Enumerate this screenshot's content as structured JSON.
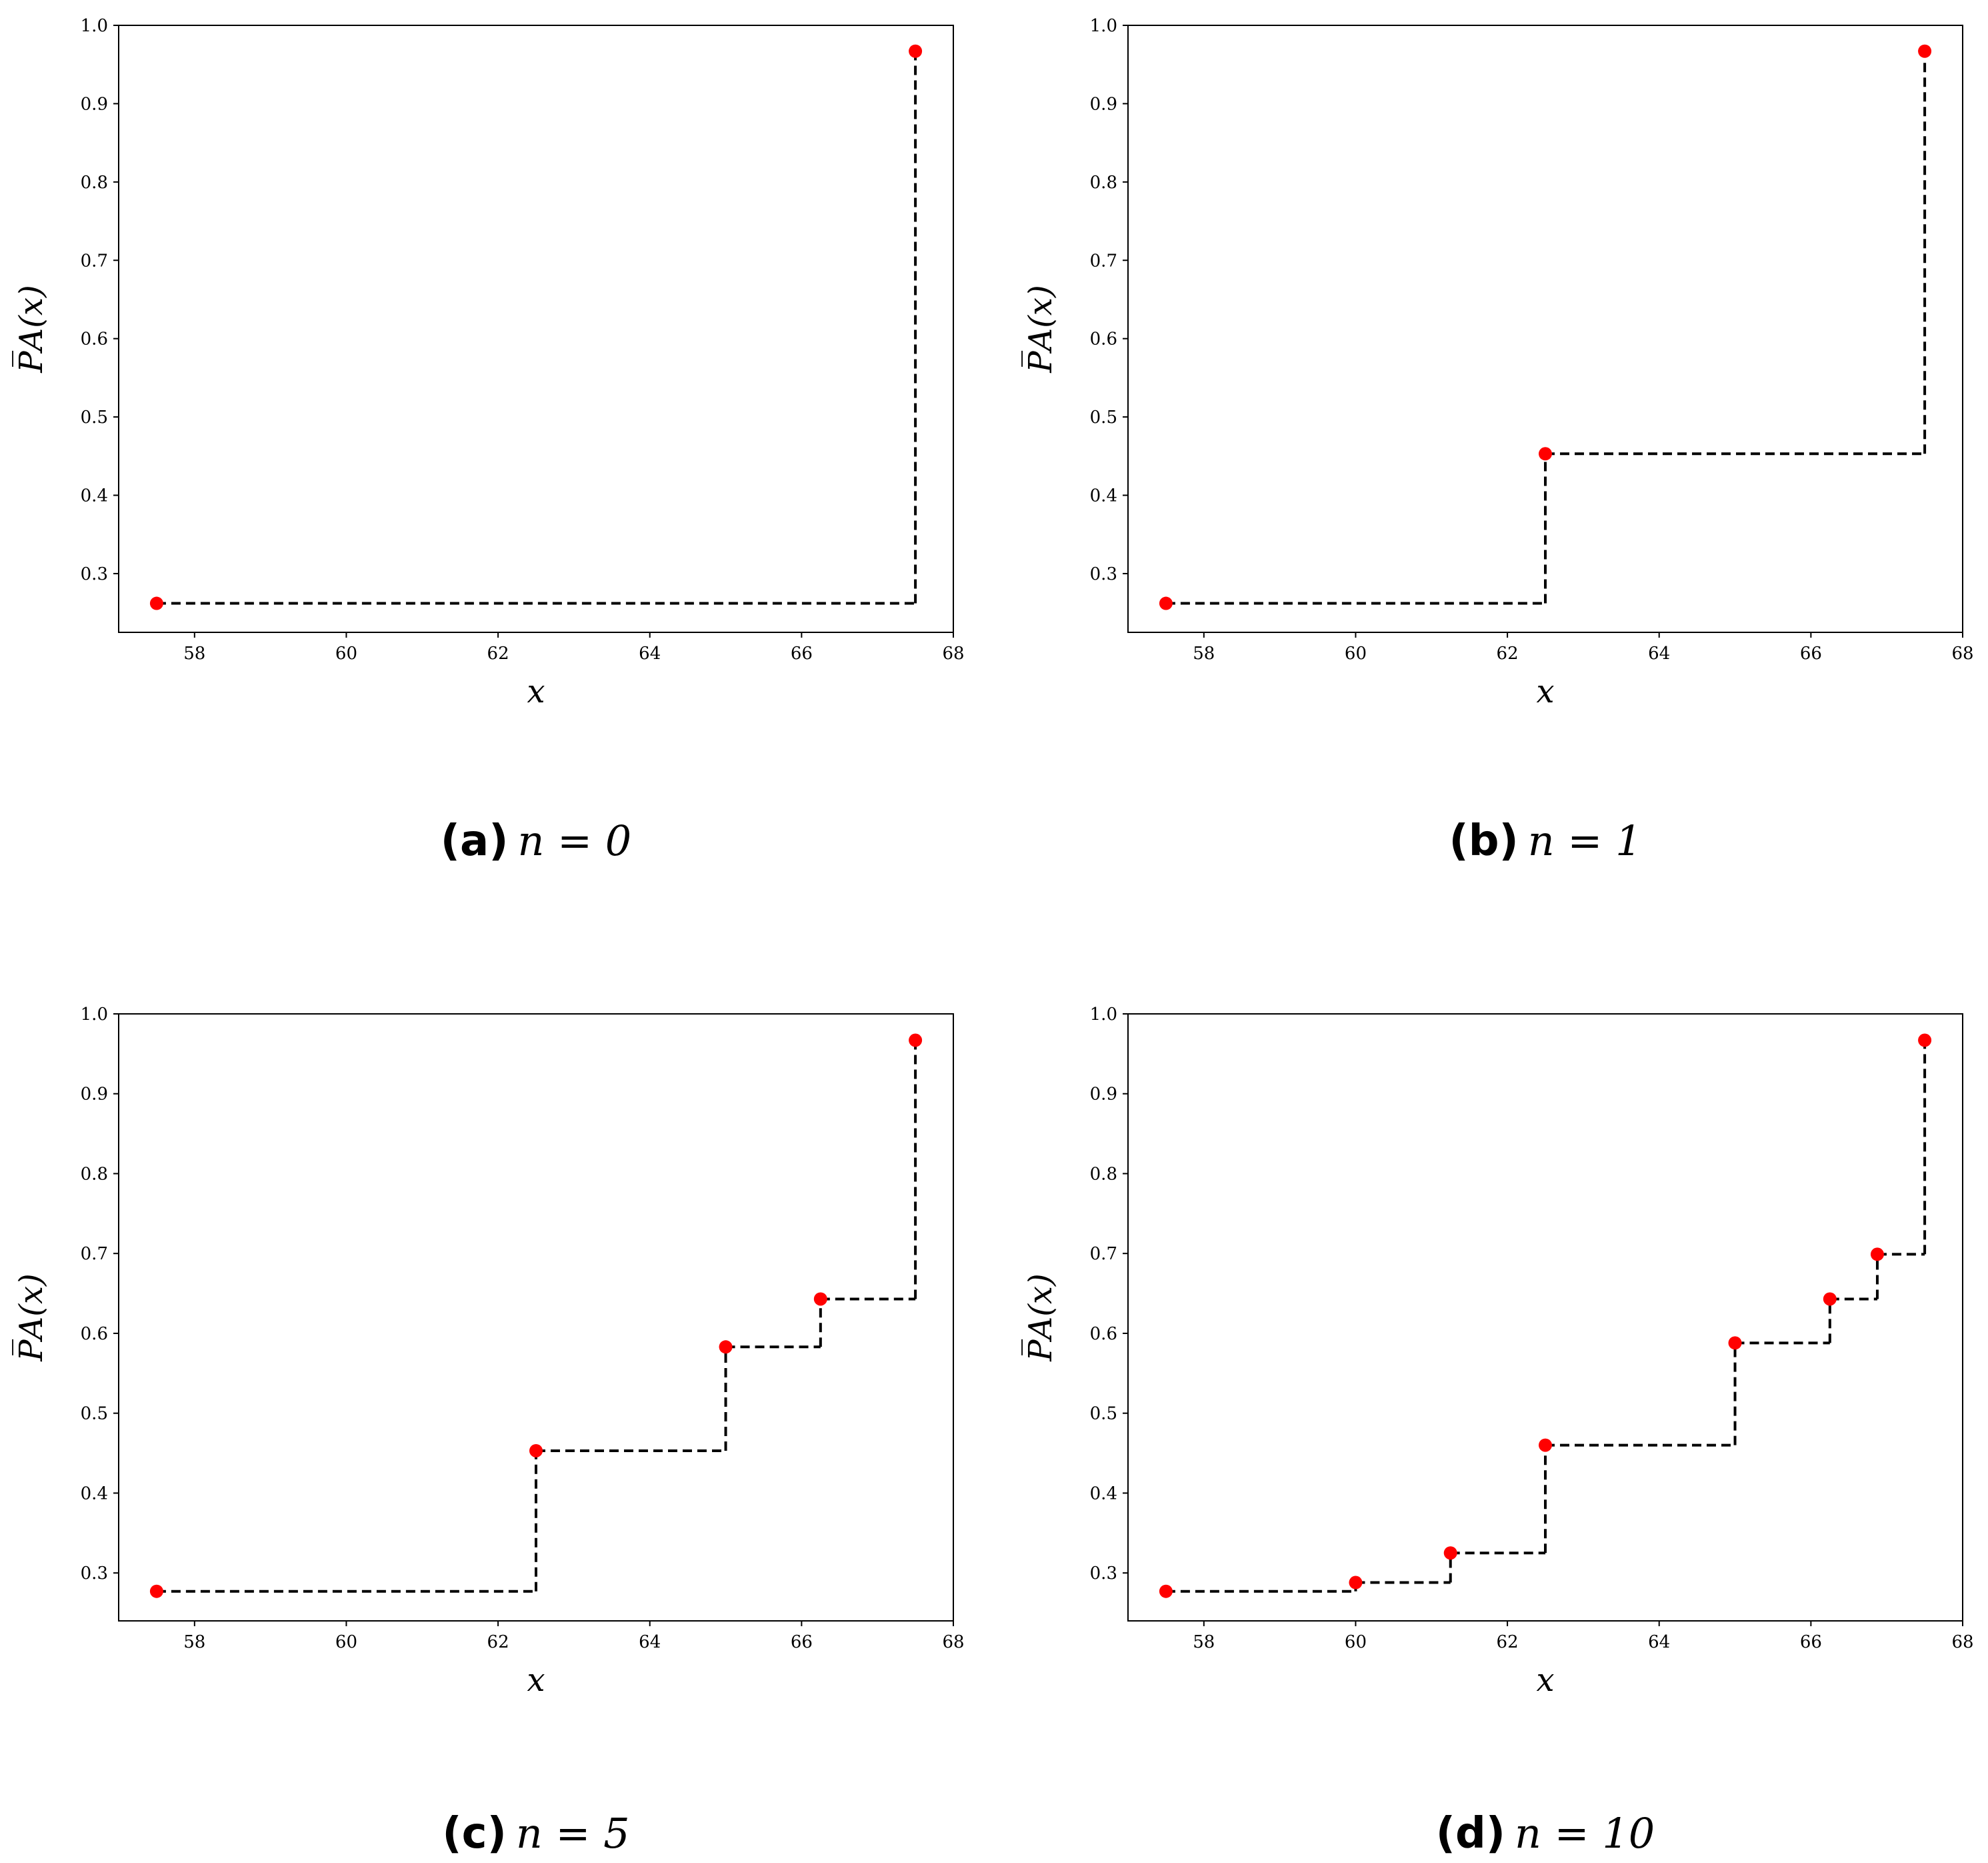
{
  "chart_data": [
    {
      "type": "line",
      "subtype": "step",
      "caption_label": "(a)",
      "caption_math": "n = 0",
      "xlabel": "x",
      "ylabel": "P̅A(x)",
      "xlim": [
        57,
        68
      ],
      "ylim": [
        0.225,
        1.0
      ],
      "xticks": [
        58,
        60,
        62,
        64,
        66,
        68
      ],
      "yticks": [
        0.3,
        0.4,
        0.5,
        0.6,
        0.7,
        0.8,
        0.9,
        1.0
      ],
      "xtick_labels": [
        "58",
        "60",
        "62",
        "64",
        "66",
        "68"
      ],
      "ytick_labels": [
        "0.3",
        "0.4",
        "0.5",
        "0.6",
        "0.7",
        "0.8",
        "0.9",
        "1.0"
      ],
      "line_color": "#000000",
      "marker_color": "#ff0000",
      "points": [
        {
          "x": 57.5,
          "y": 0.262
        },
        {
          "x": 67.5,
          "y": 0.967
        }
      ]
    },
    {
      "type": "line",
      "subtype": "step",
      "caption_label": "(b)",
      "caption_math": "n = 1",
      "xlabel": "x",
      "ylabel": "P̅A(x)",
      "xlim": [
        57,
        68
      ],
      "ylim": [
        0.225,
        1.0
      ],
      "xticks": [
        58,
        60,
        62,
        64,
        66,
        68
      ],
      "yticks": [
        0.3,
        0.4,
        0.5,
        0.6,
        0.7,
        0.8,
        0.9,
        1.0
      ],
      "xtick_labels": [
        "58",
        "60",
        "62",
        "64",
        "66",
        "68"
      ],
      "ytick_labels": [
        "0.3",
        "0.4",
        "0.5",
        "0.6",
        "0.7",
        "0.8",
        "0.9",
        "1.0"
      ],
      "line_color": "#000000",
      "marker_color": "#ff0000",
      "points": [
        {
          "x": 57.5,
          "y": 0.262
        },
        {
          "x": 62.5,
          "y": 0.453
        },
        {
          "x": 67.5,
          "y": 0.967
        }
      ]
    },
    {
      "type": "line",
      "subtype": "step",
      "caption_label": "(c)",
      "caption_math": "n = 5",
      "xlabel": "x",
      "ylabel": "P̅A(x)",
      "xlim": [
        57,
        68
      ],
      "ylim": [
        0.24,
        1.0
      ],
      "xticks": [
        58,
        60,
        62,
        64,
        66,
        68
      ],
      "yticks": [
        0.3,
        0.4,
        0.5,
        0.6,
        0.7,
        0.8,
        0.9,
        1.0
      ],
      "xtick_labels": [
        "58",
        "60",
        "62",
        "64",
        "66",
        "68"
      ],
      "ytick_labels": [
        "0.3",
        "0.4",
        "0.5",
        "0.6",
        "0.7",
        "0.8",
        "0.9",
        "1.0"
      ],
      "line_color": "#000000",
      "marker_color": "#ff0000",
      "points": [
        {
          "x": 57.5,
          "y": 0.277
        },
        {
          "x": 62.5,
          "y": 0.453
        },
        {
          "x": 65.0,
          "y": 0.583
        },
        {
          "x": 66.25,
          "y": 0.643
        },
        {
          "x": 67.5,
          "y": 0.967
        }
      ]
    },
    {
      "type": "line",
      "subtype": "step",
      "caption_label": "(d)",
      "caption_math": "n = 10",
      "xlabel": "x",
      "ylabel": "P̅A(x)",
      "xlim": [
        57,
        68
      ],
      "ylim": [
        0.24,
        1.0
      ],
      "xticks": [
        58,
        60,
        62,
        64,
        66,
        68
      ],
      "yticks": [
        0.3,
        0.4,
        0.5,
        0.6,
        0.7,
        0.8,
        0.9,
        1.0
      ],
      "xtick_labels": [
        "58",
        "60",
        "62",
        "64",
        "66",
        "68"
      ],
      "ytick_labels": [
        "0.3",
        "0.4",
        "0.5",
        "0.6",
        "0.7",
        "0.8",
        "0.9",
        "1.0"
      ],
      "line_color": "#000000",
      "marker_color": "#ff0000",
      "points": [
        {
          "x": 57.5,
          "y": 0.277
        },
        {
          "x": 60.0,
          "y": 0.288
        },
        {
          "x": 61.25,
          "y": 0.325
        },
        {
          "x": 62.5,
          "y": 0.46
        },
        {
          "x": 65.0,
          "y": 0.588
        },
        {
          "x": 66.25,
          "y": 0.643
        },
        {
          "x": 66.875,
          "y": 0.699
        },
        {
          "x": 67.5,
          "y": 0.967
        }
      ]
    }
  ]
}
